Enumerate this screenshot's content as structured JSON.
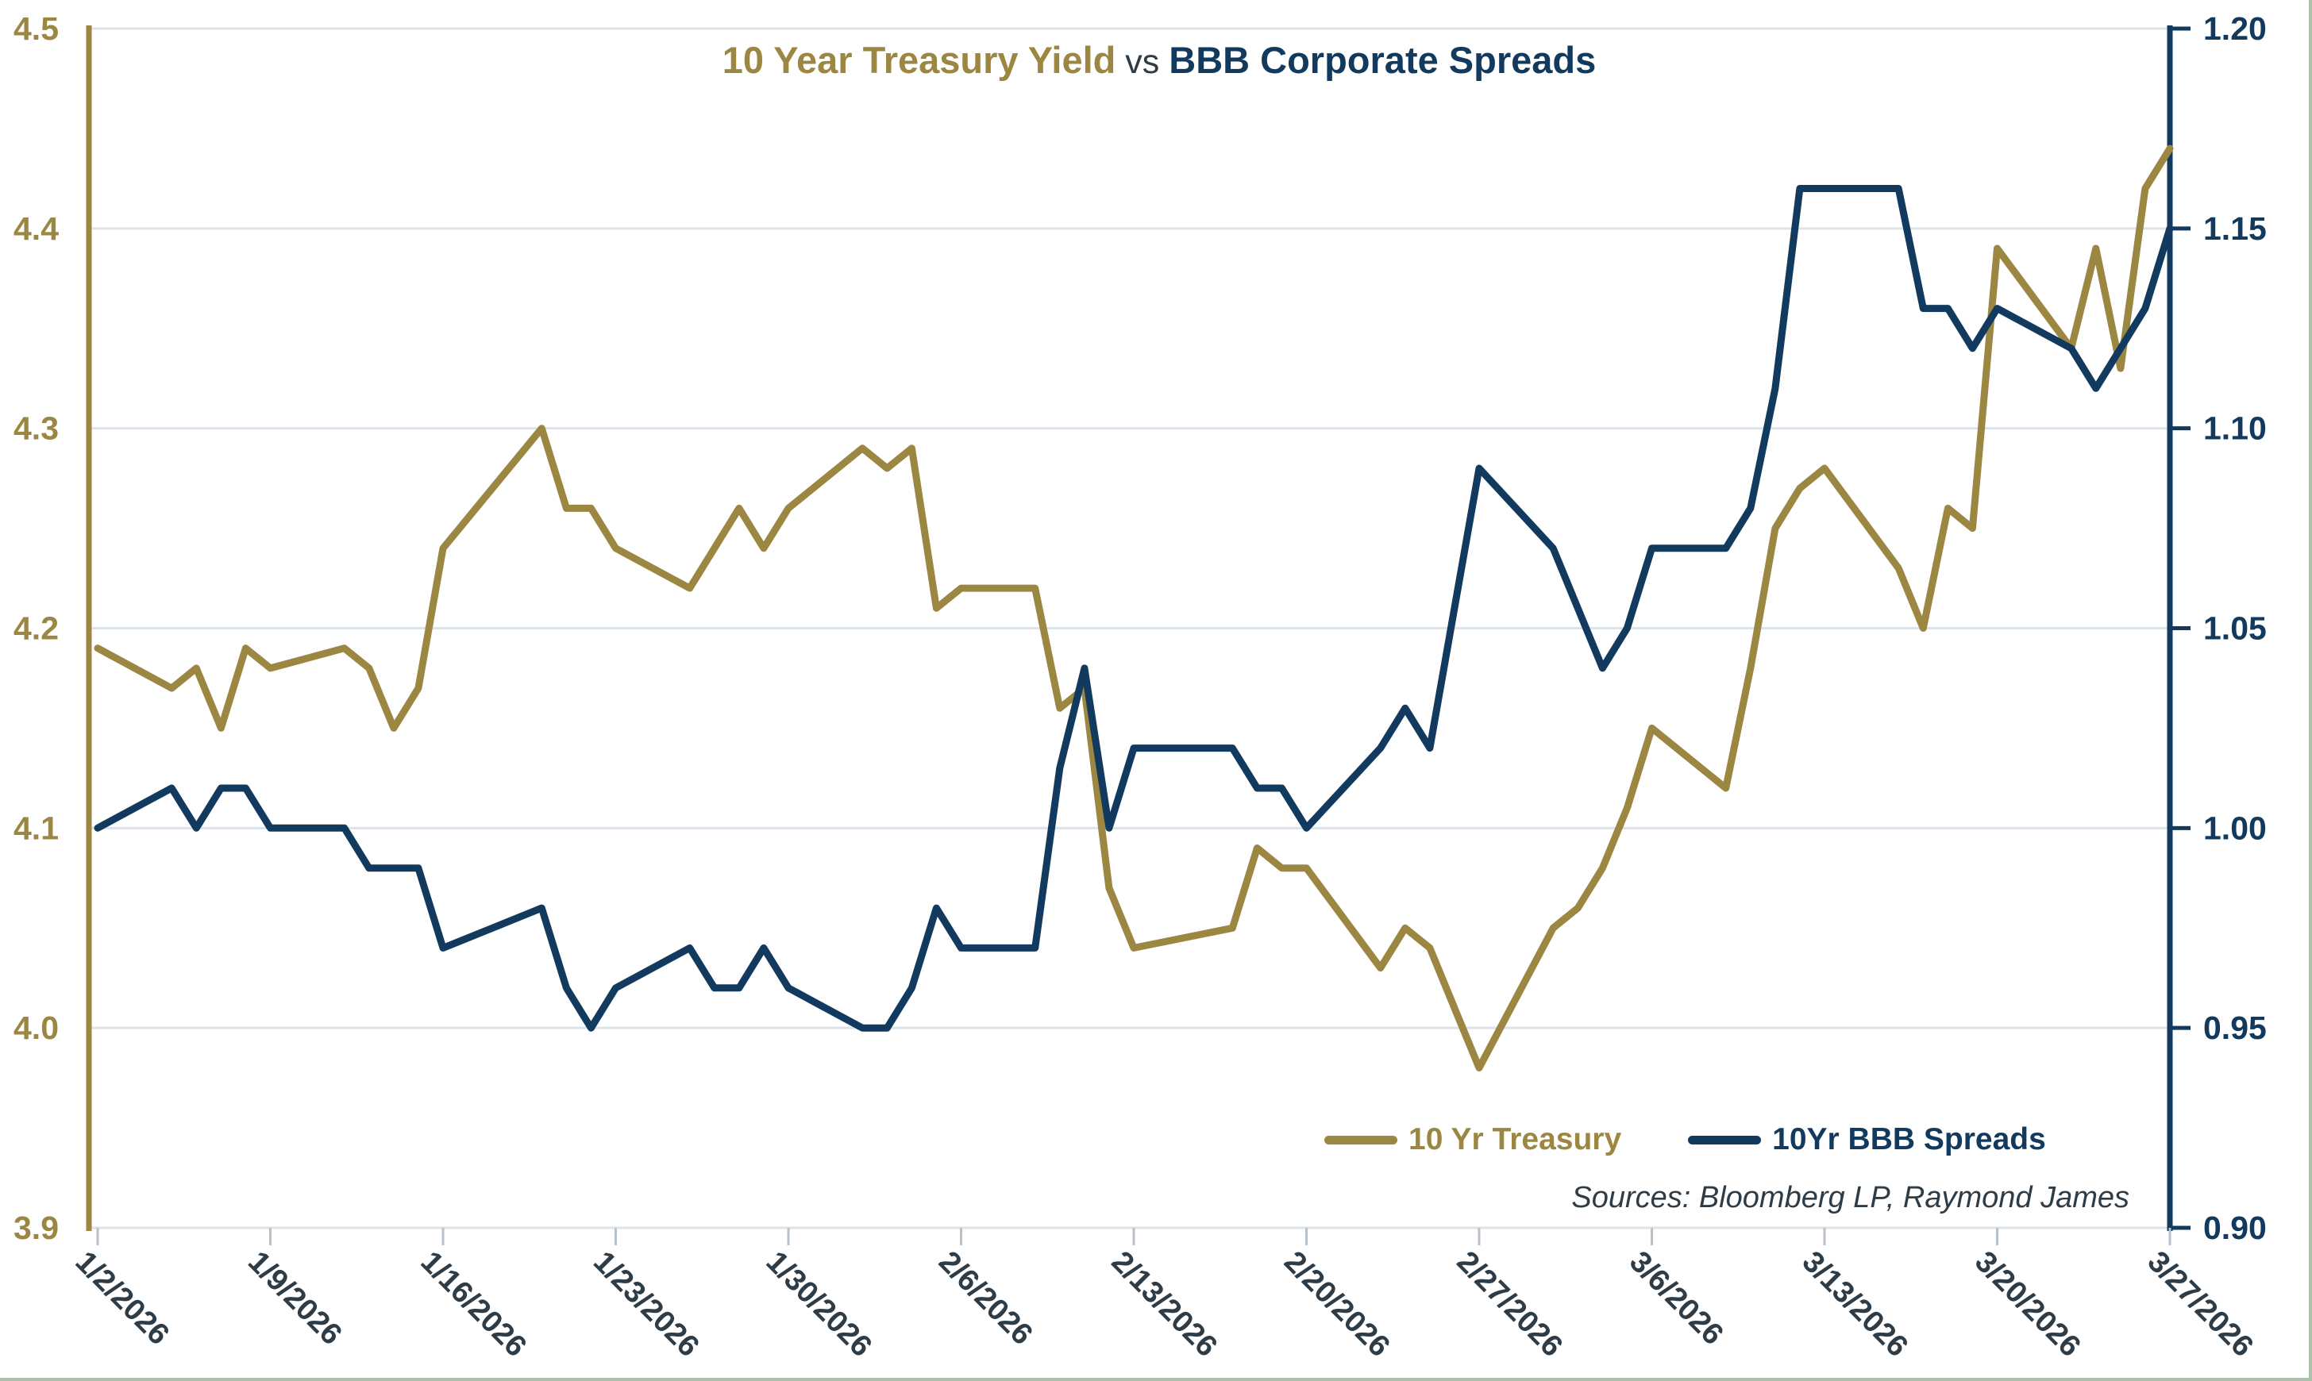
{
  "title": {
    "part1": "10 Year Treasury Yield",
    "separator": "vs",
    "part2": "BBB Corporate Spreads"
  },
  "legend": {
    "treasury_label": "10 Yr Treasury",
    "spreads_label": "10Yr BBB Spreads"
  },
  "source_note": "Sources: Bloomberg LP, Raymond James",
  "colors": {
    "gold": "#9c8742",
    "navy": "#123a5e",
    "slate": "#2d3c46",
    "gridline": "#dce3e9",
    "tick": "#b9c2c9"
  },
  "chart_data": {
    "type": "line",
    "title": "10 Year Treasury Yield vs BBB Corporate Spreads",
    "grid": true,
    "legend_position": "bottom-right-inside",
    "x": [
      "1/2/2026",
      "1/5/2026",
      "1/6/2026",
      "1/7/2026",
      "1/8/2026",
      "1/9/2026",
      "1/12/2026",
      "1/13/2026",
      "1/14/2026",
      "1/15/2026",
      "1/16/2026",
      "1/20/2026",
      "1/21/2026",
      "1/22/2026",
      "1/23/2026",
      "1/26/2026",
      "1/27/2026",
      "1/28/2026",
      "1/29/2026",
      "1/30/2026",
      "2/2/2026",
      "2/3/2026",
      "2/4/2026",
      "2/5/2026",
      "2/6/2026",
      "2/9/2026",
      "2/10/2026",
      "2/11/2026",
      "2/12/2026",
      "2/13/2026",
      "2/17/2026",
      "2/18/2026",
      "2/19/2026",
      "2/20/2026",
      "2/23/2026",
      "2/24/2026",
      "2/25/2026",
      "2/26/2026",
      "2/27/2026",
      "3/2/2026",
      "3/3/2026",
      "3/4/2026",
      "3/5/2026",
      "3/6/2026",
      "3/9/2026",
      "3/10/2026",
      "3/11/2026",
      "3/12/2026",
      "3/13/2026",
      "3/16/2026",
      "3/17/2026",
      "3/18/2026",
      "3/19/2026",
      "3/20/2026",
      "3/23/2026",
      "3/24/2026",
      "3/25/2026",
      "3/26/2026",
      "3/27/2026"
    ],
    "series": [
      {
        "name": "10 Yr Treasury",
        "axis": "left",
        "color": "#9c8742",
        "values": [
          4.19,
          4.17,
          4.18,
          4.15,
          4.19,
          4.18,
          4.19,
          4.18,
          4.15,
          4.17,
          4.24,
          4.3,
          4.26,
          4.26,
          4.24,
          4.22,
          4.24,
          4.26,
          4.24,
          4.26,
          4.29,
          4.28,
          4.29,
          4.21,
          4.22,
          4.22,
          4.16,
          4.17,
          4.07,
          4.04,
          4.05,
          4.09,
          4.08,
          4.08,
          4.03,
          4.05,
          4.04,
          4.01,
          3.98,
          4.05,
          4.06,
          4.08,
          4.11,
          4.15,
          4.12,
          4.18,
          4.25,
          4.27,
          4.28,
          4.23,
          4.2,
          4.26,
          4.25,
          4.39,
          4.34,
          4.39,
          4.33,
          4.42,
          4.44
        ]
      },
      {
        "name": "10Yr BBB Spreads",
        "axis": "right",
        "color": "#123a5e",
        "values": [
          1.0,
          1.01,
          1.0,
          1.01,
          1.01,
          1.0,
          1.0,
          0.99,
          0.99,
          0.99,
          0.97,
          0.98,
          0.96,
          0.95,
          0.96,
          0.97,
          0.96,
          0.96,
          0.97,
          0.96,
          0.95,
          0.95,
          0.96,
          0.98,
          0.97,
          0.97,
          1.015,
          1.04,
          1.0,
          1.02,
          1.02,
          1.01,
          1.01,
          1.0,
          1.02,
          1.03,
          1.02,
          1.055,
          1.09,
          1.07,
          1.055,
          1.04,
          1.05,
          1.07,
          1.07,
          1.08,
          1.11,
          1.16,
          1.16,
          1.16,
          1.13,
          1.13,
          1.12,
          1.13,
          1.12,
          1.11,
          1.12,
          1.13,
          1.15
        ]
      }
    ],
    "left_axis": {
      "label_color": "#9c8742",
      "min": 3.9,
      "max": 4.5,
      "ticks": [
        "4.5",
        "4.4",
        "4.3",
        "4.2",
        "4.1",
        "4.0",
        "3.9"
      ]
    },
    "right_axis": {
      "label_color": "#123a5e",
      "min": 0.9,
      "max": 1.2,
      "ticks": [
        "1.20",
        "1.15",
        "1.10",
        "1.05",
        "1.00",
        "0.95",
        "0.90"
      ]
    },
    "x_tick_labels": [
      "1/2/2026",
      "1/9/2026",
      "1/16/2026",
      "1/23/2026",
      "1/30/2026",
      "2/6/2026",
      "2/13/2026",
      "2/20/2026",
      "2/27/2026",
      "3/6/2026",
      "3/13/2026",
      "3/20/2026",
      "3/27/2026"
    ]
  }
}
